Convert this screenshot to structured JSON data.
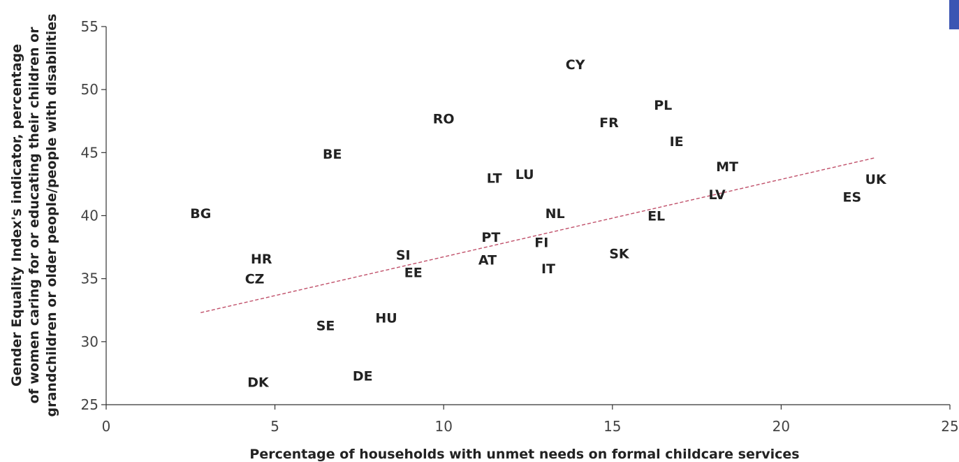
{
  "chart_data": {
    "type": "scatter",
    "xlabel": "Percentage of households with unmet needs on formal childcare services",
    "ylabel": [
      "Gender Equality Index's indicator, percentage",
      "of women caring for or educating their children or",
      "grandchildren or older people/people with disabilities"
    ],
    "xlim": [
      0,
      25
    ],
    "ylim": [
      25,
      55
    ],
    "xticks": [
      0,
      5,
      10,
      15,
      20,
      25
    ],
    "yticks": [
      25,
      30,
      35,
      40,
      45,
      50,
      55
    ],
    "grid": false,
    "points": [
      {
        "label": "BG",
        "x": 2.8,
        "y": 40.2
      },
      {
        "label": "HR",
        "x": 4.6,
        "y": 36.6
      },
      {
        "label": "CZ",
        "x": 4.4,
        "y": 35.0
      },
      {
        "label": "DK",
        "x": 4.5,
        "y": 26.8
      },
      {
        "label": "BE",
        "x": 6.7,
        "y": 44.9
      },
      {
        "label": "SE",
        "x": 6.5,
        "y": 31.3
      },
      {
        "label": "DE",
        "x": 7.6,
        "y": 27.3
      },
      {
        "label": "HU",
        "x": 8.3,
        "y": 31.9
      },
      {
        "label": "SI",
        "x": 8.8,
        "y": 36.9
      },
      {
        "label": "EE",
        "x": 9.1,
        "y": 35.5
      },
      {
        "label": "RO",
        "x": 10.0,
        "y": 47.7
      },
      {
        "label": "LT",
        "x": 11.5,
        "y": 43.0
      },
      {
        "label": "PT",
        "x": 11.4,
        "y": 38.3
      },
      {
        "label": "AT",
        "x": 11.3,
        "y": 36.5
      },
      {
        "label": "LU",
        "x": 12.4,
        "y": 43.3
      },
      {
        "label": "FI",
        "x": 12.9,
        "y": 37.9
      },
      {
        "label": "IT",
        "x": 13.1,
        "y": 35.8
      },
      {
        "label": "NL",
        "x": 13.3,
        "y": 40.2
      },
      {
        "label": "CY",
        "x": 13.9,
        "y": 52.0
      },
      {
        "label": "FR",
        "x": 14.9,
        "y": 47.4
      },
      {
        "label": "SK",
        "x": 15.2,
        "y": 37.0
      },
      {
        "label": "EL",
        "x": 16.3,
        "y": 40.0
      },
      {
        "label": "PL",
        "x": 16.5,
        "y": 48.8
      },
      {
        "label": "IE",
        "x": 16.9,
        "y": 45.9
      },
      {
        "label": "LV",
        "x": 18.1,
        "y": 41.7
      },
      {
        "label": "MT",
        "x": 18.4,
        "y": 43.9
      },
      {
        "label": "ES",
        "x": 22.1,
        "y": 41.5
      },
      {
        "label": "UK",
        "x": 22.8,
        "y": 42.9
      }
    ],
    "trendline": {
      "x": [
        2.8,
        22.8
      ],
      "y": [
        32.3,
        44.6
      ],
      "color": "#c0506a",
      "style": "dashed"
    }
  }
}
